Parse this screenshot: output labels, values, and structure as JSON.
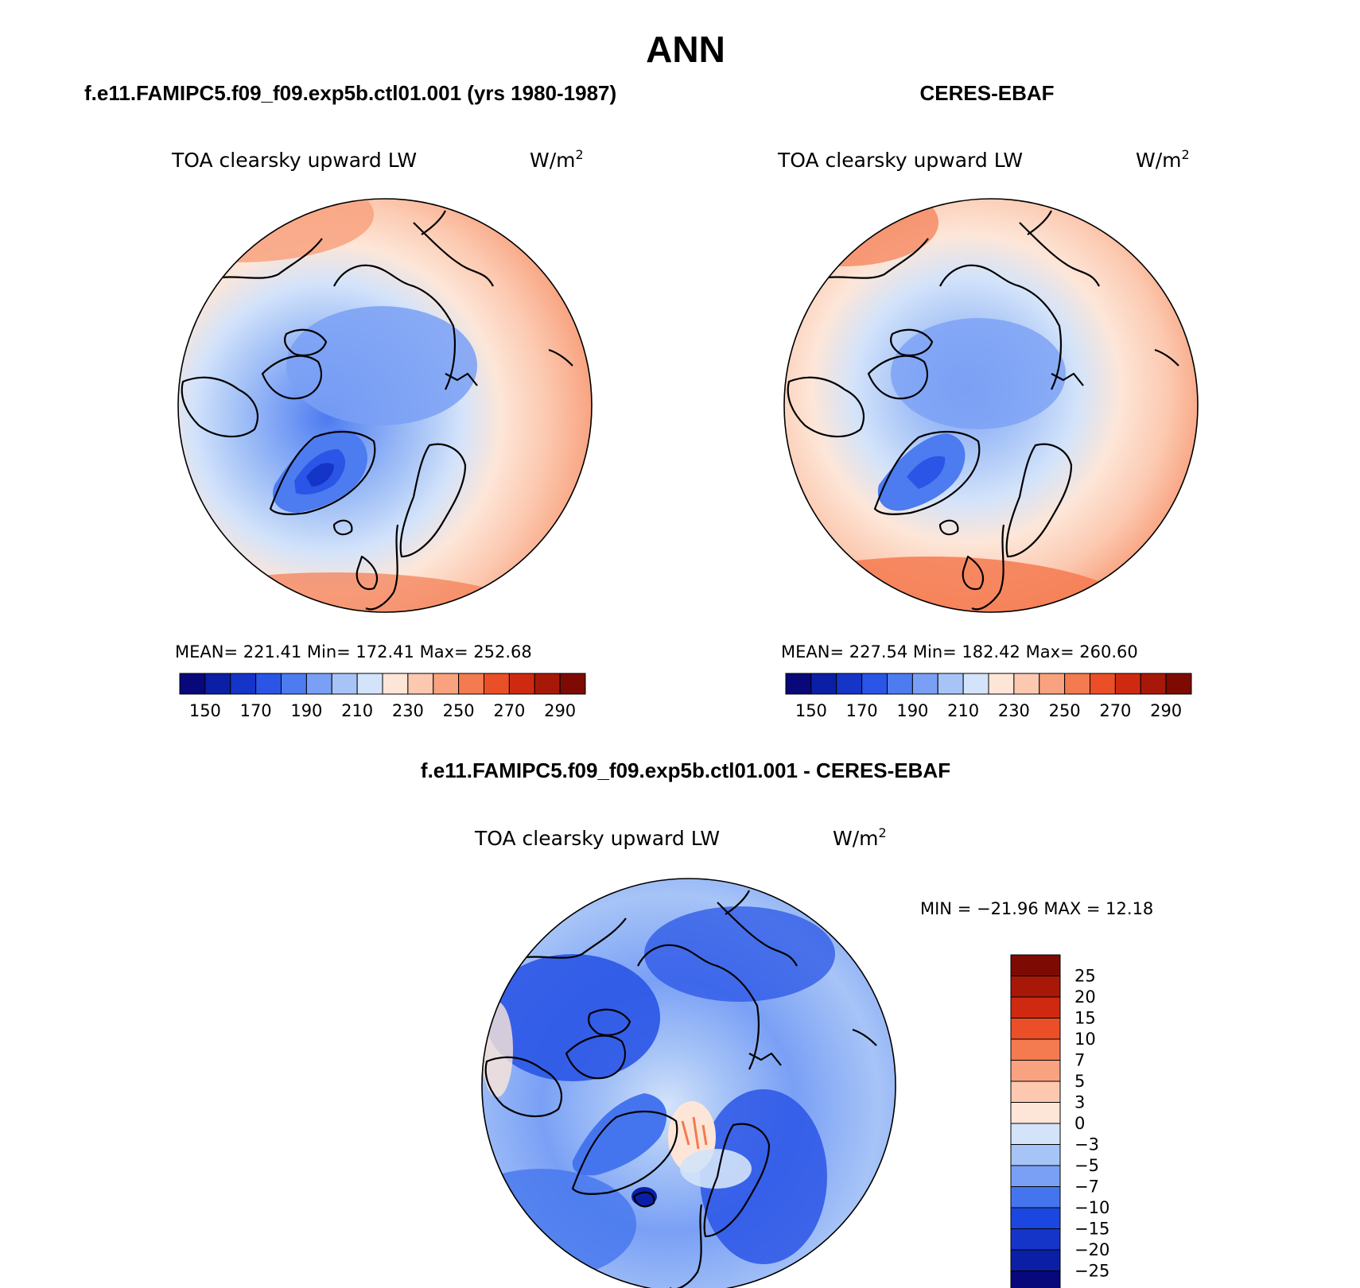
{
  "figure": {
    "season": "ANN",
    "panels": {
      "model": {
        "title": "f.e11.FAMIPC5.f09_f09.exp5b.ctl01.001 (yrs 1980-1987)",
        "variable": "TOA clearsky upward LW",
        "units": "W/m",
        "units_exp": "2",
        "stats": "MEAN= 221.41   Min= 172.41   Max= 252.68"
      },
      "obs": {
        "title": "CERES-EBAF",
        "variable": "TOA clearsky upward LW",
        "units": "W/m",
        "units_exp": "2",
        "stats": "MEAN= 227.54   Min= 182.42   Max= 260.60"
      },
      "diff": {
        "title": "f.e11.FAMIPC5.f09_f09.exp5b.ctl01.001 - CERES-EBAF",
        "variable": "TOA clearsky upward LW",
        "units": "W/m",
        "units_exp": "2",
        "stats": "MIN = −21.96 MAX =   12.18"
      }
    }
  },
  "chart_data": [
    {
      "type": "heatmap",
      "projection": "north-polar-stereographic",
      "title": "f.e11.FAMIPC5.f09_f09.exp5b.ctl01.001 (yrs 1980-1987)",
      "variable": "TOA clearsky upward LW",
      "units": "W/m2",
      "mean": 221.41,
      "min": 172.41,
      "max": 252.68,
      "colorbar": {
        "levels": [
          150,
          160,
          170,
          180,
          190,
          200,
          210,
          220,
          230,
          240,
          250,
          260,
          270,
          280,
          290
        ],
        "tick_labels": [
          "150",
          "170",
          "190",
          "210",
          "230",
          "250",
          "270",
          "290"
        ],
        "colors": [
          "#08087a",
          "#0a1fa6",
          "#1435c8",
          "#2a55e6",
          "#4d7bf0",
          "#7aa0f5",
          "#a7c4f7",
          "#d3e3fa",
          "#fde6d8",
          "#fcc9b0",
          "#f8a27f",
          "#f47a50",
          "#ea4f27",
          "#cf2a10",
          "#a71808",
          "#7d0b04"
        ]
      }
    },
    {
      "type": "heatmap",
      "projection": "north-polar-stereographic",
      "title": "CERES-EBAF",
      "variable": "TOA clearsky upward LW",
      "units": "W/m2",
      "mean": 227.54,
      "min": 182.42,
      "max": 260.6,
      "colorbar": {
        "levels": [
          150,
          160,
          170,
          180,
          190,
          200,
          210,
          220,
          230,
          240,
          250,
          260,
          270,
          280,
          290
        ],
        "tick_labels": [
          "150",
          "170",
          "190",
          "210",
          "230",
          "250",
          "270",
          "290"
        ],
        "colors": [
          "#08087a",
          "#0a1fa6",
          "#1435c8",
          "#2a55e6",
          "#4d7bf0",
          "#7aa0f5",
          "#a7c4f7",
          "#d3e3fa",
          "#fde6d8",
          "#fcc9b0",
          "#f8a27f",
          "#f47a50",
          "#ea4f27",
          "#cf2a10",
          "#a71808",
          "#7d0b04"
        ]
      }
    },
    {
      "type": "heatmap",
      "projection": "north-polar-stereographic",
      "title": "f.e11.FAMIPC5.f09_f09.exp5b.ctl01.001 - CERES-EBAF",
      "variable": "TOA clearsky upward LW",
      "units": "W/m2",
      "min": -21.96,
      "max": 12.18,
      "colorbar": {
        "orientation": "vertical",
        "levels": [
          -25,
          -20,
          -15,
          -10,
          -7,
          -5,
          -3,
          0,
          3,
          5,
          7,
          10,
          15,
          20,
          25
        ],
        "tick_labels": [
          "25",
          "20",
          "15",
          "10",
          "7",
          "5",
          "3",
          "0",
          "−3",
          "−5",
          "−7",
          "−10",
          "−15",
          "−20",
          "−25"
        ],
        "colors": [
          "#08087a",
          "#0a1fa6",
          "#1435c8",
          "#1c46e0",
          "#4575ee",
          "#7aa0f5",
          "#a7c4f7",
          "#d3e3fa",
          "#fde6d8",
          "#fcc9b0",
          "#f8a27f",
          "#f47a50",
          "#ea4f27",
          "#cf2a10",
          "#a71808",
          "#7d0b04"
        ]
      }
    }
  ]
}
